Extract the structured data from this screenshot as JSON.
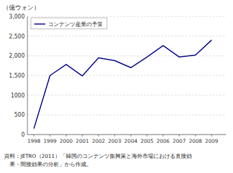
{
  "chart_data": {
    "type": "line",
    "y_label": "（億ウォン）",
    "x": [
      1998,
      1999,
      2000,
      2001,
      2002,
      2003,
      2004,
      2005,
      2006,
      2007,
      2008,
      2009
    ],
    "series": [
      {
        "name": "コンテンツ産業の予算",
        "color": "#00008B",
        "values": [
          150,
          1500,
          1780,
          1490,
          1950,
          1880,
          1700,
          1970,
          2260,
          1970,
          2020,
          2400
        ]
      }
    ],
    "xlim": [
      1997.6,
      2009.9
    ],
    "xticks": [
      1998,
      1999,
      2000,
      2001,
      2002,
      2003,
      2004,
      2005,
      2006,
      2007,
      2008,
      2009
    ],
    "ylim": [
      0,
      3000
    ],
    "yticks": [
      0,
      500,
      1000,
      {
        "value": 1500,
        "label": "1,500"
      },
      {
        "value": 2000,
        "label": "2,000"
      },
      {
        "value": 2500,
        "label": "2,500"
      },
      {
        "value": 3000,
        "label": "3,000"
      }
    ],
    "grid": true,
    "legend": "upper left",
    "annotations": [
      "資料：JETRO（2011）「韓国のコンテンツ振興策と海外市場における直接効",
      "　果・間接効果の分析」から作成。"
    ]
  }
}
